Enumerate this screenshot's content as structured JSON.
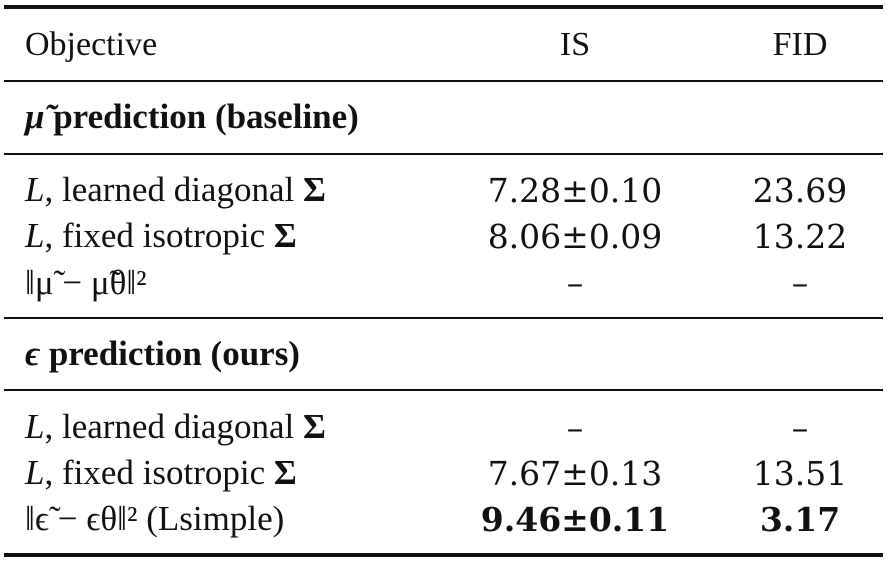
{
  "header": {
    "objective": "Objective",
    "is": "IS",
    "fid": "FID"
  },
  "sections": [
    {
      "title_symbol": "μ̃",
      "title": "prediction (baseline)",
      "rows": [
        {
          "sym": "L",
          "text": ", learned diagonal",
          "tail": "Σ",
          "is": "7.28±0.10",
          "fid": "23.69"
        },
        {
          "sym": "L",
          "text": ", fixed isotropic",
          "tail": "Σ",
          "is": "8.06±0.09",
          "fid": "13.22"
        },
        {
          "formula": "‖μ̃ − μ̃θ‖²",
          "is": "–",
          "fid": "–"
        }
      ]
    },
    {
      "title_symbol": "ϵ",
      "title": "prediction (ours)",
      "rows": [
        {
          "sym": "L",
          "text": ", learned diagonal",
          "tail": "Σ",
          "is": "–",
          "fid": "–"
        },
        {
          "sym": "L",
          "text": ", fixed isotropic",
          "tail": "Σ",
          "is": "7.67±0.13",
          "fid": "13.51"
        },
        {
          "formula": "‖ϵ̃ − ϵθ‖² (Lsimple)",
          "is": "9.46±0.11",
          "fid": "3.17"
        }
      ]
    }
  ]
}
